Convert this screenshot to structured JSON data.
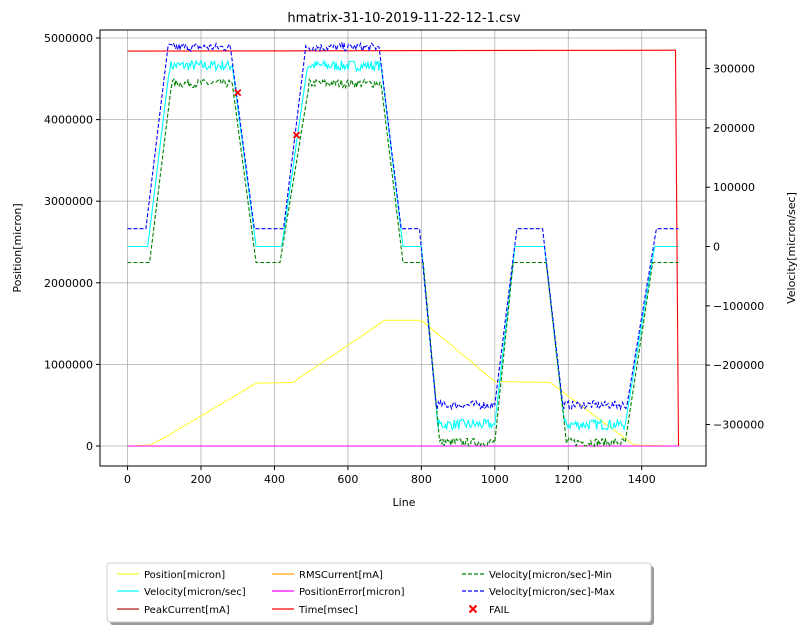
{
  "chart_data": {
    "type": "line",
    "title": "hmatrix-31-10-2019-11-22-12-1.csv",
    "xlabel": "Line",
    "ylabel_left": "Position[micron]",
    "ylabel_right": "Velocity[micron/sec]",
    "xlim": [
      -75,
      1575
    ],
    "ylim_left": [
      -245000,
      5098000
    ],
    "ylim_right": [
      -370000,
      365000
    ],
    "xticks": [
      "0",
      "200",
      "400",
      "600",
      "800",
      "1000",
      "1200",
      "1400"
    ],
    "xtick_values": [
      0,
      200,
      400,
      600,
      800,
      1000,
      1200,
      1400
    ],
    "yticks_left": [
      "0",
      "1000000",
      "2000000",
      "3000000",
      "4000000",
      "5000000"
    ],
    "ytick_left_values": [
      0,
      1000000,
      2000000,
      3000000,
      4000000,
      5000000
    ],
    "yticks_right": [
      "−300000",
      "−200000",
      "−100000",
      "0",
      "100000",
      "200000",
      "300000"
    ],
    "ytick_right_values": [
      -300000,
      -200000,
      -100000,
      0,
      100000,
      200000,
      300000
    ],
    "grid": true,
    "legend_placement": "below",
    "series": [
      {
        "name": "Position[micron]",
        "axis": "left",
        "color": "#ffff33",
        "dash": "",
        "x": [
          0,
          60,
          100,
          350,
          450,
          700,
          800,
          1000,
          1150,
          1380,
          1500
        ],
        "y": [
          0,
          10000,
          100000,
          770000,
          780000,
          1540000,
          1540000,
          790000,
          780000,
          10000,
          0
        ],
        "noise": 0
      },
      {
        "name": "Velocity[micron/sec]",
        "axis": "right",
        "color": "#00ffff",
        "dash": "",
        "x": [
          0,
          55,
          115,
          285,
          350,
          420,
          490,
          690,
          750,
          800,
          845,
          1000,
          1055,
          1135,
          1190,
          1355,
          1435,
          1500
        ],
        "y": [
          0,
          0,
          305000,
          305000,
          0,
          0,
          305000,
          305000,
          0,
          0,
          -300000,
          -300000,
          0,
          0,
          -300000,
          -300000,
          0,
          0
        ],
        "noise": 9000
      },
      {
        "name": "PeakCurrent[mA]",
        "axis": "left",
        "color": "#b22222",
        "dash": "",
        "x": [
          0,
          1500
        ],
        "y": [
          0,
          0
        ],
        "noise": 0
      },
      {
        "name": "RMSCurrent[mA]",
        "axis": "left",
        "color": "#ffa500",
        "dash": "",
        "x": [
          0,
          1500
        ],
        "y": [
          0,
          0
        ],
        "noise": 0
      },
      {
        "name": "PositionError[micron]",
        "axis": "left",
        "color": "#ff00ff",
        "dash": "",
        "x": [
          0,
          1500
        ],
        "y": [
          0,
          0
        ],
        "noise": 0
      },
      {
        "name": "Time[msec]",
        "axis": "left",
        "color": "#ff0000",
        "dash": "",
        "x": [
          0,
          1490,
          1492,
          1500
        ],
        "y": [
          4840000,
          4850000,
          4850000,
          0
        ],
        "noise": 0
      },
      {
        "name": "Velocity[micron/sec]-Min",
        "axis": "right",
        "color": "#008000",
        "dash": "4,2",
        "x": [
          0,
          60,
          120,
          285,
          350,
          415,
          495,
          690,
          750,
          805,
          850,
          1000,
          1050,
          1140,
          1195,
          1355,
          1430,
          1500
        ],
        "y": [
          -27000,
          -27000,
          275000,
          275000,
          -27000,
          -27000,
          275000,
          275000,
          -27000,
          -27000,
          -330000,
          -330000,
          -27000,
          -27000,
          -330000,
          -330000,
          -27000,
          -27000
        ],
        "noise": 7000
      },
      {
        "name": "Velocity[micron/sec]-Max",
        "axis": "right",
        "color": "#0000ff",
        "dash": "4,2",
        "x": [
          0,
          50,
          110,
          280,
          345,
          425,
          485,
          685,
          745,
          795,
          840,
          1000,
          1060,
          1130,
          1185,
          1360,
          1440,
          1500
        ],
        "y": [
          30000,
          30000,
          336000,
          336000,
          30000,
          30000,
          336000,
          336000,
          30000,
          30000,
          -267000,
          -267000,
          30000,
          30000,
          -267000,
          -267000,
          30000,
          30000
        ],
        "noise": 7000
      }
    ],
    "fail_points": {
      "name": "FAIL",
      "axis": "left",
      "color": "#ff0000",
      "x": [
        300,
        460
      ],
      "y": [
        4330000,
        3810000
      ]
    }
  }
}
